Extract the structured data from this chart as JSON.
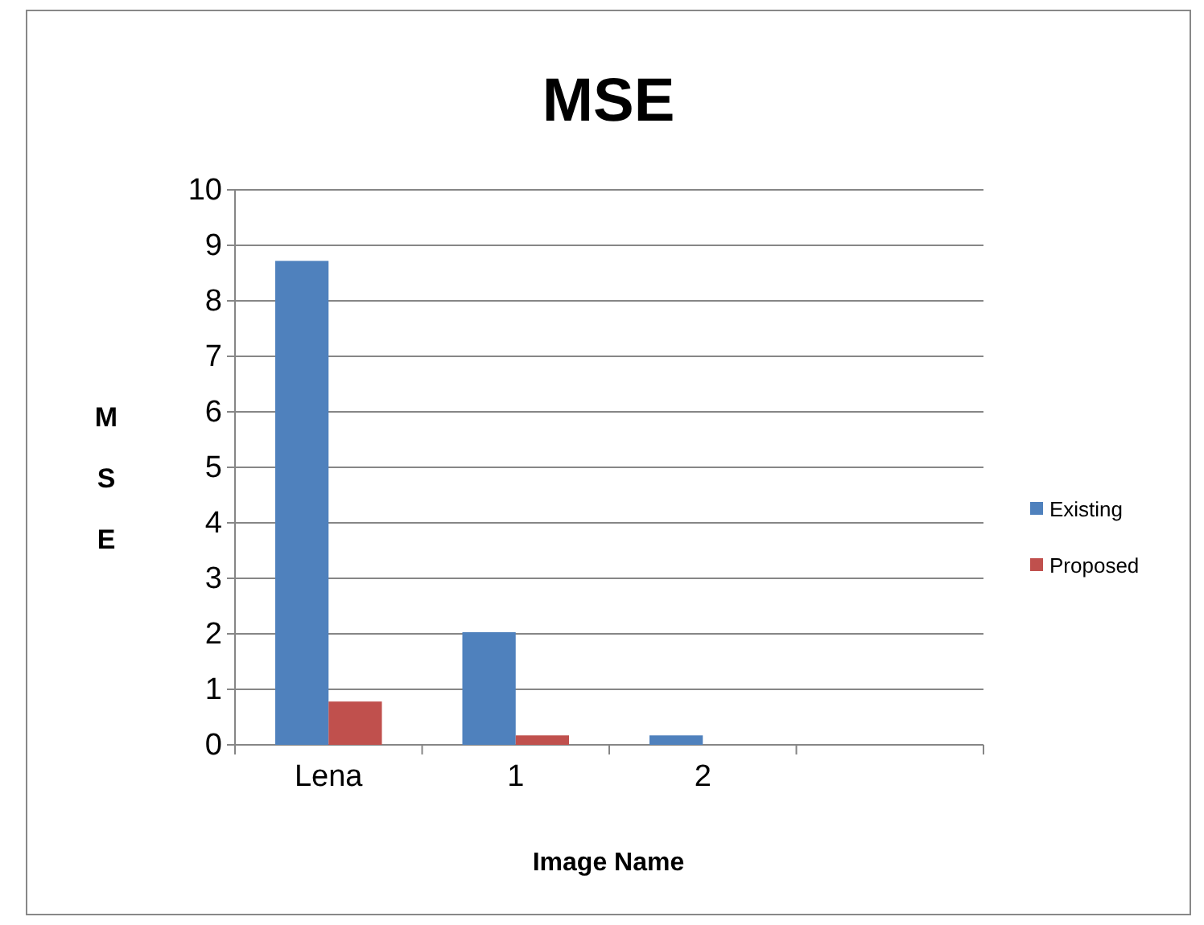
{
  "chart_data": {
    "type": "bar",
    "title": "MSE",
    "xlabel": "Image Name",
    "ylabel": "MSE",
    "categories": [
      "Lena",
      "1",
      "2",
      null
    ],
    "series": [
      {
        "name": "Existing",
        "color": "#4f81bd",
        "values": [
          8.72,
          2.03,
          0.17,
          null
        ]
      },
      {
        "name": "Proposed",
        "color": "#c0504d",
        "values": [
          0.78,
          0.17,
          0,
          null
        ]
      }
    ],
    "ylim": [
      0,
      10
    ],
    "yticks": [
      0,
      1,
      2,
      3,
      4,
      5,
      6,
      7,
      8,
      9,
      10
    ],
    "grid": "y",
    "legend": "right"
  }
}
